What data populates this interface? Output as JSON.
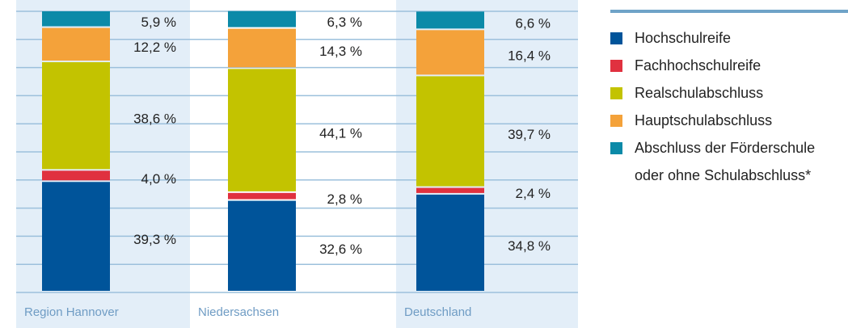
{
  "chart_data": {
    "type": "bar",
    "stacked": true,
    "categories": [
      "Region Hannover",
      "Niedersachsen",
      "Deutschland"
    ],
    "series": [
      {
        "name": "Hochschulreife",
        "color": "#00549a",
        "values": [
          39.3,
          32.6,
          34.8
        ],
        "value_labels": [
          "39,3 %",
          "32,6 %",
          "34,8 %"
        ]
      },
      {
        "name": "Fachhochschulreife",
        "color": "#e0313f",
        "values": [
          4.0,
          2.8,
          2.4
        ],
        "value_labels": [
          "4,0 %",
          "2,8 %",
          "2,4 %"
        ]
      },
      {
        "name": "Realschulabschluss",
        "color": "#c3c300",
        "values": [
          38.6,
          44.1,
          39.7
        ],
        "value_labels": [
          "38,6 %",
          "44,1 %",
          "39,7 %"
        ]
      },
      {
        "name": "Hauptschulabschluss",
        "color": "#f4a23a",
        "values": [
          12.2,
          14.3,
          16.4
        ],
        "value_labels": [
          "12,2 %",
          "14,3 %",
          "16,4 %"
        ]
      },
      {
        "name": "Abschluss der Förderschule\noder ohne Schulabschluss*",
        "color": "#0b8aa8",
        "values": [
          5.9,
          6.3,
          6.6
        ],
        "value_labels": [
          "5,9 %",
          "6,3 %",
          "6,6 %"
        ]
      }
    ],
    "ylim": [
      0,
      100
    ],
    "yticks": [
      0,
      10,
      20,
      30,
      40,
      50,
      60,
      70,
      80,
      90,
      100
    ],
    "grid": true
  }
}
